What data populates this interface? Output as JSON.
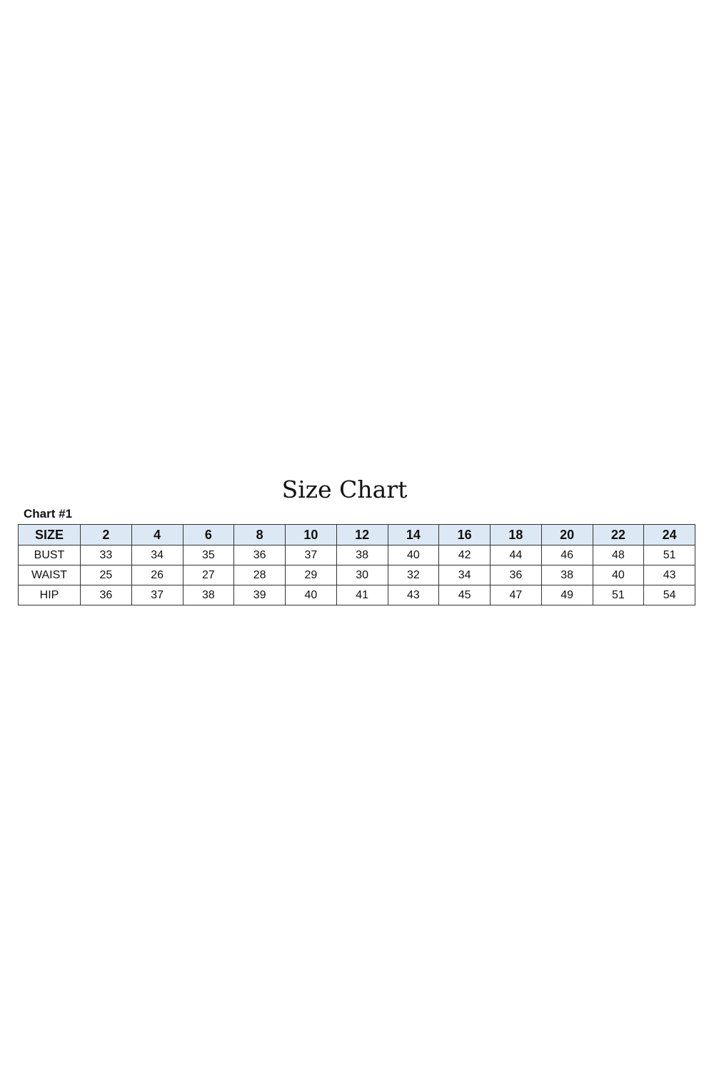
{
  "title": "Size Chart",
  "subtitle": "Chart #1",
  "header_color": "#dce9f5",
  "chart_data": {
    "type": "table",
    "columns": [
      "SIZE",
      "2",
      "4",
      "6",
      "8",
      "10",
      "12",
      "14",
      "16",
      "18",
      "20",
      "22",
      "24"
    ],
    "rows": [
      {
        "label": "BUST",
        "values": [
          "33",
          "34",
          "35",
          "36",
          "37",
          "38",
          "40",
          "42",
          "44",
          "46",
          "48",
          "51"
        ]
      },
      {
        "label": "WAIST",
        "values": [
          "25",
          "26",
          "27",
          "28",
          "29",
          "30",
          "32",
          "34",
          "36",
          "38",
          "40",
          "43"
        ]
      },
      {
        "label": "HIP",
        "values": [
          "36",
          "37",
          "38",
          "39",
          "40",
          "41",
          "43",
          "45",
          "47",
          "49",
          "51",
          "54"
        ]
      }
    ]
  }
}
